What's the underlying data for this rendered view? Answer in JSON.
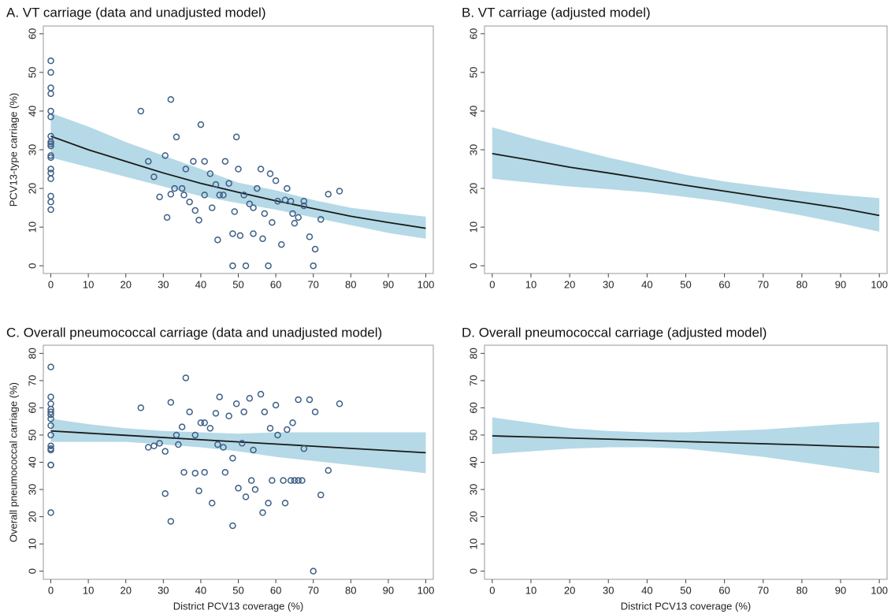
{
  "chart_data": [
    {
      "type": "scatter",
      "title": "A. VT carriage (data and unadjusted model)",
      "ylabel": "PCV13-type carriage (%)",
      "xlim": [
        -2,
        102
      ],
      "ylim": [
        -2,
        62
      ],
      "xticks": [
        0,
        10,
        20,
        30,
        40,
        50,
        60,
        70,
        80,
        90,
        100
      ],
      "yticks": [
        0,
        10,
        20,
        30,
        40,
        50,
        60
      ],
      "points": {
        "color": "#3d5f86",
        "x": [
          0,
          0,
          0,
          0,
          0,
          0,
          0,
          0,
          0,
          0,
          0,
          0,
          0,
          0,
          0,
          0,
          0,
          0,
          24,
          26,
          27.5,
          29,
          30.5,
          31,
          32,
          32,
          33,
          33.5,
          35,
          35.5,
          36,
          37,
          38,
          38.5,
          39.5,
          40,
          41,
          41,
          42.5,
          43,
          44,
          44.5,
          45,
          46,
          46.5,
          47.5,
          48.5,
          48.5,
          49,
          49.5,
          50,
          50.5,
          51.5,
          52,
          53,
          54,
          54,
          55,
          56,
          56.5,
          57,
          58,
          58.5,
          59,
          60,
          60.5,
          61.5,
          62.5,
          63,
          64,
          64.5,
          65,
          66,
          67.5,
          67.5,
          69,
          70,
          70.5,
          72,
          74,
          77
        ],
        "values": [
          53,
          50,
          46,
          44.5,
          40,
          38.5,
          33.5,
          32,
          31.5,
          31,
          28.5,
          28,
          25,
          24,
          22.5,
          18,
          16.5,
          14.5,
          40,
          27,
          23,
          17.8,
          28.5,
          12.5,
          43,
          18.5,
          20,
          33.3,
          20,
          18.3,
          25,
          16.5,
          27,
          14.3,
          11.8,
          36.5,
          27,
          18.3,
          23.8,
          15,
          21,
          6.7,
          18.3,
          18.3,
          27,
          21.3,
          8.3,
          0,
          14,
          33.3,
          25,
          7.8,
          18.3,
          0,
          16,
          8.3,
          15,
          20,
          25,
          7,
          13.5,
          0,
          23.8,
          11.2,
          22,
          16.7,
          5.5,
          17,
          20,
          16.7,
          13.5,
          11,
          12.5,
          15.5,
          16.7,
          7.5,
          0,
          4.3,
          12,
          18.5,
          19.3
        ]
      },
      "fit": {
        "color": "#1a1a1a",
        "band_color": "#a8d2e2",
        "x": [
          0,
          10,
          20,
          30,
          40,
          50,
          60,
          70,
          80,
          90,
          100
        ],
        "values": [
          33.5,
          30,
          27,
          24,
          21.3,
          19,
          16.8,
          14.8,
          12.8,
          11.2,
          9.7
        ],
        "lower": [
          28,
          25.5,
          23,
          20.5,
          18,
          16.2,
          14.5,
          12.5,
          10.5,
          8.5,
          7
        ],
        "upper": [
          39.5,
          36,
          32,
          28.5,
          25,
          21.5,
          19.5,
          17,
          15,
          13.8,
          12.7
        ]
      }
    },
    {
      "type": "line",
      "title": "B. VT carriage (adjusted model)",
      "xlim": [
        -2,
        102
      ],
      "ylim": [
        -2,
        62
      ],
      "xticks": [
        0,
        10,
        20,
        30,
        40,
        50,
        60,
        70,
        80,
        90,
        100
      ],
      "yticks": [
        0,
        10,
        20,
        30,
        40,
        50,
        60
      ],
      "fit": {
        "color": "#1a1a1a",
        "band_color": "#a8d2e2",
        "x": [
          0,
          10,
          20,
          30,
          40,
          50,
          60,
          70,
          80,
          90,
          100
        ],
        "values": [
          29,
          27.3,
          25.5,
          24,
          22.4,
          20.8,
          19.3,
          17.8,
          16.4,
          14.9,
          13
        ],
        "lower": [
          22.5,
          21.5,
          20.5,
          19.8,
          19,
          17.8,
          16.5,
          14.8,
          13,
          11,
          8.8
        ],
        "upper": [
          35.8,
          33,
          30.5,
          28,
          25.8,
          23.5,
          21.8,
          20.5,
          19.3,
          18.3,
          17.5
        ]
      }
    },
    {
      "type": "scatter",
      "title": "C. Overall pneumococcal carriage (data and unadjusted model)",
      "ylabel": "Overall pneumococcal carriage (%)",
      "xlabel": "District PCV13 coverage (%)",
      "xlim": [
        -2,
        102
      ],
      "ylim": [
        -3,
        83
      ],
      "xticks": [
        0,
        10,
        20,
        30,
        40,
        50,
        60,
        70,
        80,
        90,
        100
      ],
      "yticks": [
        0,
        10,
        20,
        30,
        40,
        50,
        60,
        70,
        80
      ],
      "points": {
        "color": "#3d5f86",
        "x": [
          0,
          0,
          0,
          0,
          0,
          0,
          0,
          0,
          0,
          0,
          0,
          0,
          0,
          0,
          0,
          24,
          26,
          27.5,
          29,
          30.5,
          30.5,
          32,
          32,
          33.5,
          34,
          35,
          35.5,
          36,
          37,
          38.5,
          38.5,
          39.5,
          40,
          41,
          41,
          42.5,
          43,
          44,
          44.5,
          45,
          46,
          46.5,
          47.5,
          48.5,
          48.5,
          49.5,
          50,
          51,
          51.5,
          52,
          53,
          53.5,
          54,
          54.5,
          56,
          56.5,
          57,
          58,
          58.5,
          59,
          60,
          60.5,
          62,
          62.5,
          63,
          64,
          64.5,
          65,
          66,
          66,
          67,
          67.5,
          69,
          70,
          70.5,
          72,
          74,
          77
        ],
        "values": [
          75,
          64,
          61.5,
          59.5,
          58.5,
          57.5,
          56,
          53.5,
          50,
          46,
          44.5,
          45,
          39,
          39,
          21.5,
          60,
          45.5,
          46,
          47,
          28.5,
          44,
          18.3,
          62,
          50,
          46.5,
          53,
          36.3,
          71,
          58.5,
          50,
          36,
          29.5,
          54.5,
          54.5,
          36.3,
          52.5,
          25,
          58,
          46.5,
          64,
          45.5,
          36.3,
          57,
          16.7,
          41.5,
          61.5,
          30.5,
          47,
          58.5,
          27.3,
          63.5,
          33.3,
          44.5,
          30,
          65,
          21.5,
          58.5,
          25,
          52.5,
          33.3,
          61,
          50,
          33.3,
          25,
          52,
          33.3,
          54.5,
          33.3,
          33.3,
          63,
          33.3,
          45,
          63,
          0,
          58.5,
          28,
          37,
          61.5
        ]
      },
      "fit": {
        "color": "#1a1a1a",
        "band_color": "#a8d2e2",
        "x": [
          0,
          10,
          20,
          30,
          40,
          50,
          60,
          70,
          80,
          90,
          100
        ],
        "values": [
          51.5,
          50.7,
          49.9,
          49.1,
          48.3,
          47.5,
          46.7,
          45.9,
          45.1,
          44.3,
          43.5
        ],
        "lower": [
          47.5,
          47.5,
          47.5,
          46.5,
          45.5,
          44,
          42,
          40.5,
          39,
          37.5,
          36
        ],
        "upper": [
          56,
          54,
          52.5,
          51.5,
          51,
          50.5,
          51,
          51,
          51,
          51,
          51
        ]
      }
    },
    {
      "type": "line",
      "title": "D. Overall pneumococcal carriage (adjusted model)",
      "xlabel": "District PCV13 coverage (%)",
      "xlim": [
        -2,
        102
      ],
      "ylim": [
        -3,
        83
      ],
      "xticks": [
        0,
        10,
        20,
        30,
        40,
        50,
        60,
        70,
        80,
        90,
        100
      ],
      "yticks": [
        0,
        10,
        20,
        30,
        40,
        50,
        60,
        70,
        80
      ],
      "fit": {
        "color": "#1a1a1a",
        "band_color": "#a8d2e2",
        "x": [
          0,
          10,
          20,
          30,
          40,
          50,
          60,
          70,
          80,
          90,
          100
        ],
        "values": [
          49.7,
          49.3,
          48.9,
          48.5,
          48.1,
          47.6,
          47.2,
          46.8,
          46.4,
          45.9,
          45.5
        ],
        "lower": [
          43,
          44,
          45,
          45.5,
          45.5,
          45,
          43.5,
          42,
          40,
          38,
          36
        ],
        "upper": [
          56.5,
          54.5,
          52.5,
          51.5,
          51,
          51,
          51.5,
          52,
          53,
          54,
          54.8
        ]
      }
    }
  ]
}
